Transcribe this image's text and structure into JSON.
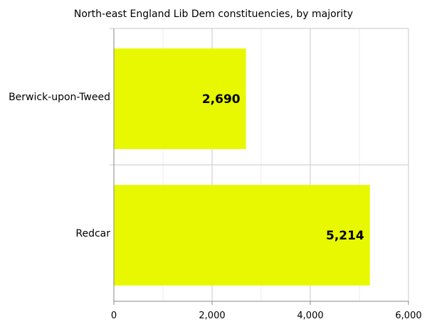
{
  "chart_data": {
    "type": "bar",
    "orientation": "horizontal",
    "title": "North-east England Lib Dem constituencies, by majority",
    "categories": [
      "Berwick-upon-Tweed",
      "Redcar"
    ],
    "values": [
      2690,
      5214
    ],
    "data_labels": [
      "2,690",
      "5,214"
    ],
    "xlabel": "",
    "ylabel": "",
    "xlim": [
      0,
      6000
    ],
    "x_ticks": [
      0,
      2000,
      4000,
      6000
    ],
    "x_tick_labels": [
      "0",
      "2,000",
      "4,000",
      "6,000"
    ],
    "grid": true,
    "legend": "none",
    "colors": {
      "bar": "#e8f800",
      "grid": "#c8c8c8",
      "minor_grid": "#ececec",
      "text": "#000000"
    }
  }
}
